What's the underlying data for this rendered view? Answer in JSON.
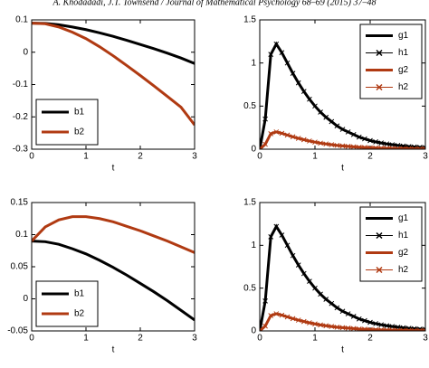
{
  "header": "A. Khodadadi, J.T. Townsend / Journal of Mathematical Psychology 68–69 (2015) 37–48",
  "chart_data": [
    {
      "type": "line",
      "xlabel": "t",
      "xlim": [
        0,
        3
      ],
      "xticks": [
        0,
        1,
        2,
        3
      ],
      "ylim": [
        -0.3,
        0.1
      ],
      "yticks": [
        -0.3,
        -0.2,
        -0.1,
        0,
        0.1
      ],
      "legend": "lower left",
      "x": [
        0,
        0.25,
        0.5,
        0.75,
        1,
        1.25,
        1.5,
        1.75,
        2,
        2.25,
        2.5,
        2.75,
        3
      ],
      "series": [
        {
          "name": "b1",
          "color": "#000000",
          "style": "line",
          "values": [
            0.09,
            0.089,
            0.085,
            0.078,
            0.07,
            0.06,
            0.049,
            0.037,
            0.024,
            0.011,
            -0.003,
            -0.018,
            -0.035
          ]
        },
        {
          "name": "b2",
          "color": "#b03a12",
          "style": "line",
          "values": [
            0.09,
            0.088,
            0.078,
            0.062,
            0.042,
            0.017,
            -0.011,
            -0.041,
            -0.072,
            -0.104,
            -0.137,
            -0.17,
            -0.225
          ]
        }
      ]
    },
    {
      "type": "line",
      "xlabel": "t",
      "xlim": [
        0,
        3
      ],
      "xticks": [
        0,
        1,
        2,
        3
      ],
      "ylim": [
        0,
        1.5
      ],
      "yticks": [
        0,
        0.5,
        1,
        1.5
      ],
      "legend": "upper right",
      "x": [
        0,
        0.1,
        0.2,
        0.3,
        0.4,
        0.5,
        0.6,
        0.7,
        0.8,
        0.9,
        1,
        1.1,
        1.2,
        1.3,
        1.4,
        1.5,
        1.6,
        1.7,
        1.8,
        1.9,
        2,
        2.1,
        2.2,
        2.3,
        2.4,
        2.5,
        2.6,
        2.7,
        2.8,
        2.9,
        3
      ],
      "series": [
        {
          "name": "g1",
          "color": "#000000",
          "style": "line",
          "values": [
            0,
            0.35,
            1.1,
            1.22,
            1.12,
            1.0,
            0.88,
            0.77,
            0.67,
            0.58,
            0.5,
            0.43,
            0.37,
            0.32,
            0.27,
            0.23,
            0.2,
            0.17,
            0.14,
            0.12,
            0.1,
            0.085,
            0.072,
            0.061,
            0.052,
            0.044,
            0.037,
            0.031,
            0.026,
            0.022,
            0.019
          ]
        },
        {
          "name": "h1",
          "color": "#000000",
          "style": "marker",
          "values": [
            0,
            0.35,
            1.1,
            1.22,
            1.12,
            1.0,
            0.88,
            0.77,
            0.67,
            0.58,
            0.5,
            0.43,
            0.37,
            0.32,
            0.27,
            0.23,
            0.2,
            0.17,
            0.14,
            0.12,
            0.1,
            0.085,
            0.072,
            0.061,
            0.052,
            0.044,
            0.037,
            0.031,
            0.026,
            0.022,
            0.019
          ]
        },
        {
          "name": "g2",
          "color": "#b03a12",
          "style": "line",
          "values": [
            0,
            0.057,
            0.18,
            0.2,
            0.184,
            0.164,
            0.144,
            0.126,
            0.11,
            0.095,
            0.082,
            0.07,
            0.061,
            0.052,
            0.044,
            0.038,
            0.033,
            0.028,
            0.023,
            0.02,
            0.016,
            0.014,
            0.012,
            0.01,
            0.009,
            0.007,
            0.006,
            0.005,
            0.004,
            0.004,
            0.003
          ]
        },
        {
          "name": "h2",
          "color": "#b03a12",
          "style": "marker",
          "values": [
            0,
            0.057,
            0.18,
            0.2,
            0.184,
            0.164,
            0.144,
            0.126,
            0.11,
            0.095,
            0.082,
            0.07,
            0.061,
            0.052,
            0.044,
            0.038,
            0.033,
            0.028,
            0.023,
            0.02,
            0.016,
            0.014,
            0.012,
            0.01,
            0.009,
            0.007,
            0.006,
            0.005,
            0.004,
            0.004,
            0.003
          ]
        }
      ]
    },
    {
      "type": "line",
      "xlabel": "t",
      "xlim": [
        0,
        3
      ],
      "xticks": [
        0,
        1,
        2,
        3
      ],
      "ylim": [
        -0.05,
        0.15
      ],
      "yticks": [
        -0.05,
        0,
        0.05,
        0.1,
        0.15
      ],
      "legend": "lower left",
      "x": [
        0,
        0.25,
        0.5,
        0.75,
        1,
        1.25,
        1.5,
        1.75,
        2,
        2.25,
        2.5,
        2.75,
        3
      ],
      "series": [
        {
          "name": "b1",
          "color": "#000000",
          "style": "line",
          "values": [
            0.09,
            0.089,
            0.085,
            0.078,
            0.07,
            0.06,
            0.049,
            0.037,
            0.024,
            0.011,
            -0.003,
            -0.018,
            -0.033
          ]
        },
        {
          "name": "b2",
          "color": "#b03a12",
          "style": "line",
          "values": [
            0.09,
            0.112,
            0.123,
            0.128,
            0.128,
            0.125,
            0.12,
            0.113,
            0.106,
            0.098,
            0.09,
            0.081,
            0.072
          ]
        }
      ]
    },
    {
      "type": "line",
      "xlabel": "t",
      "xlim": [
        0,
        3
      ],
      "xticks": [
        0,
        1,
        2,
        3
      ],
      "ylim": [
        0,
        1.5
      ],
      "yticks": [
        0,
        0.5,
        1,
        1.5
      ],
      "legend": "upper right",
      "x": [
        0,
        0.1,
        0.2,
        0.3,
        0.4,
        0.5,
        0.6,
        0.7,
        0.8,
        0.9,
        1,
        1.1,
        1.2,
        1.3,
        1.4,
        1.5,
        1.6,
        1.7,
        1.8,
        1.9,
        2,
        2.1,
        2.2,
        2.3,
        2.4,
        2.5,
        2.6,
        2.7,
        2.8,
        2.9,
        3
      ],
      "series": [
        {
          "name": "g1",
          "color": "#000000",
          "style": "line",
          "values": [
            0,
            0.35,
            1.1,
            1.22,
            1.12,
            1.0,
            0.88,
            0.77,
            0.67,
            0.58,
            0.5,
            0.43,
            0.37,
            0.32,
            0.27,
            0.23,
            0.2,
            0.17,
            0.14,
            0.12,
            0.1,
            0.085,
            0.072,
            0.061,
            0.052,
            0.044,
            0.037,
            0.031,
            0.026,
            0.022,
            0.019
          ]
        },
        {
          "name": "h1",
          "color": "#000000",
          "style": "marker",
          "values": [
            0,
            0.35,
            1.1,
            1.22,
            1.12,
            1.0,
            0.88,
            0.77,
            0.67,
            0.58,
            0.5,
            0.43,
            0.37,
            0.32,
            0.27,
            0.23,
            0.2,
            0.17,
            0.14,
            0.12,
            0.1,
            0.085,
            0.072,
            0.061,
            0.052,
            0.044,
            0.037,
            0.031,
            0.026,
            0.022,
            0.019
          ]
        },
        {
          "name": "g2",
          "color": "#b03a12",
          "style": "line",
          "values": [
            0,
            0.057,
            0.18,
            0.2,
            0.184,
            0.164,
            0.144,
            0.126,
            0.11,
            0.095,
            0.082,
            0.07,
            0.061,
            0.052,
            0.044,
            0.038,
            0.033,
            0.028,
            0.023,
            0.02,
            0.016,
            0.014,
            0.012,
            0.01,
            0.009,
            0.007,
            0.006,
            0.005,
            0.004,
            0.004,
            0.003
          ]
        },
        {
          "name": "h2",
          "color": "#b03a12",
          "style": "marker",
          "values": [
            0,
            0.057,
            0.18,
            0.2,
            0.184,
            0.164,
            0.144,
            0.126,
            0.11,
            0.095,
            0.082,
            0.07,
            0.061,
            0.052,
            0.044,
            0.038,
            0.033,
            0.028,
            0.023,
            0.02,
            0.016,
            0.014,
            0.012,
            0.01,
            0.009,
            0.007,
            0.006,
            0.005,
            0.004,
            0.004,
            0.003
          ]
        }
      ]
    }
  ]
}
